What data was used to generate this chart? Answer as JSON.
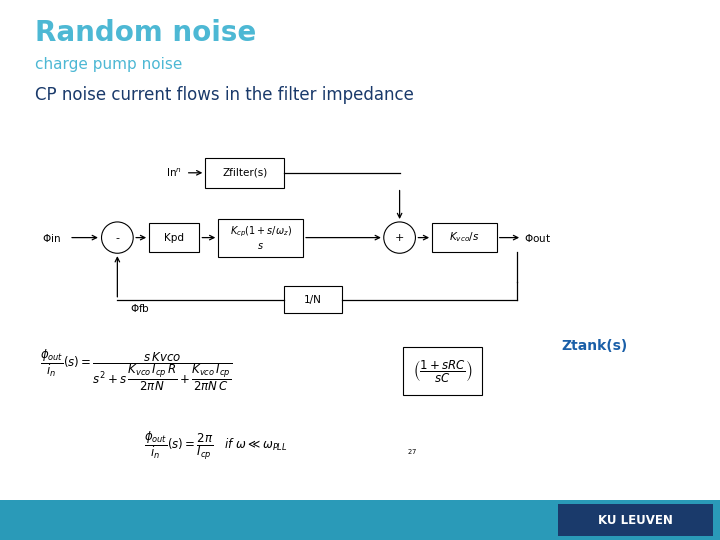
{
  "title": "Random noise",
  "subtitle": "charge pump noise",
  "heading": "CP noise current flows in the filter impedance",
  "title_color": "#4db8d4",
  "subtitle_color": "#4db8d4",
  "heading_color": "#1a3a6b",
  "bg_color": "#ffffff",
  "footer_color": "#2a9ab8",
  "ku_leuven_bg": "#1a3a6b",
  "ku_leuven_text": "#ffffff",
  "ztank_color": "#1a5fa8"
}
